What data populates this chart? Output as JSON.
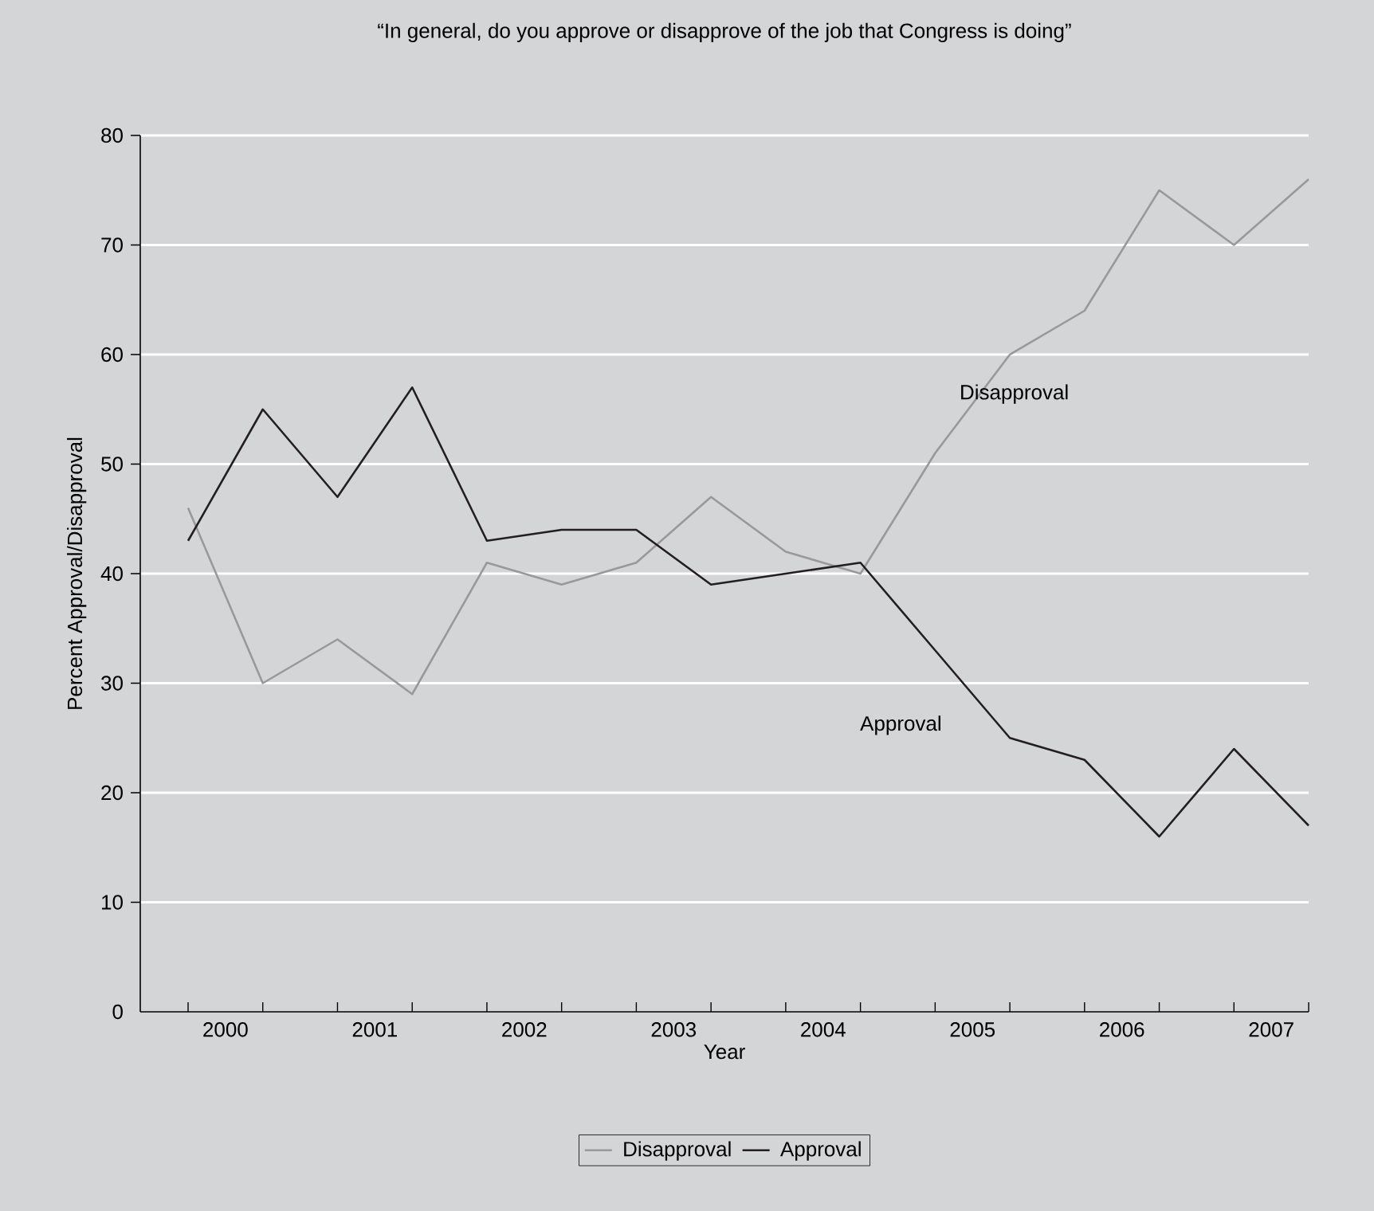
{
  "chart_data": {
    "type": "line",
    "title": "“In general, do you approve or disapprove of the job that Congress is doing”",
    "xlabel": "Year",
    "ylabel": "Percent Approval/Disapproval",
    "x": [
      1999.75,
      2000.25,
      2000.75,
      2001.25,
      2001.75,
      2002.25,
      2002.75,
      2003.25,
      2003.75,
      2004.25,
      2004.75,
      2005.25,
      2005.75,
      2006.25,
      2006.75,
      2007.25
    ],
    "series": [
      {
        "name": "Disapproval",
        "color": "#999999",
        "values": [
          46,
          30,
          34,
          29,
          41,
          39,
          41,
          47,
          42,
          40,
          51,
          60,
          64,
          75,
          70,
          76
        ]
      },
      {
        "name": "Approval",
        "color": "#231f20",
        "values": [
          43,
          55,
          47,
          57,
          43,
          44,
          44,
          39,
          40,
          41,
          33,
          25,
          23,
          16,
          24,
          17
        ]
      }
    ],
    "xlim": [
      1999.43,
      2007.25
    ],
    "ylim": [
      0,
      80
    ],
    "xticks": [
      {
        "value": 1999.75,
        "label": null
      },
      {
        "value": 2000.25,
        "label": null
      },
      {
        "value": 2000.75,
        "label": null
      },
      {
        "value": 2001.25,
        "label": null
      },
      {
        "value": 2001.75,
        "label": null
      },
      {
        "value": 2002.25,
        "label": null
      },
      {
        "value": 2002.75,
        "label": null
      },
      {
        "value": 2003.25,
        "label": null
      },
      {
        "value": 2003.75,
        "label": null
      },
      {
        "value": 2004.25,
        "label": null
      },
      {
        "value": 2004.75,
        "label": null
      },
      {
        "value": 2005.25,
        "label": null
      },
      {
        "value": 2005.75,
        "label": null
      },
      {
        "value": 2006.25,
        "label": null
      },
      {
        "value": 2006.75,
        "label": null
      },
      {
        "value": 2007.25,
        "label": null
      },
      2000,
      2001,
      2002,
      2003,
      2004,
      2005,
      2006,
      2007
    ],
    "yticks": [
      0,
      10,
      20,
      30,
      40,
      50,
      60,
      70,
      80
    ],
    "annotations": [
      "Disapproval",
      "Approval"
    ],
    "grid": "y",
    "legend": "bottom",
    "marker": "none",
    "line_style": "solid"
  }
}
